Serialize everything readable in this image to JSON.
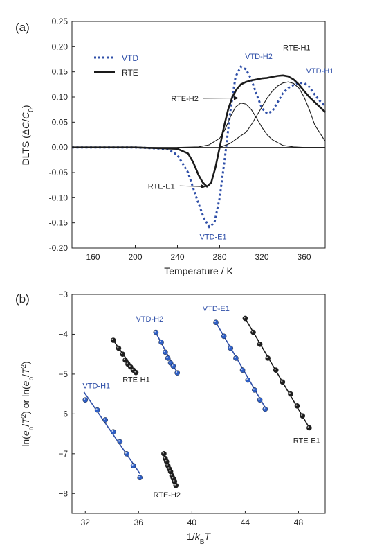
{
  "colors": {
    "vtd": "#2f4fa8",
    "rte": "#1a1a1a",
    "vtd_point": "#2f5fc6",
    "rte_point": "#1e1e1e"
  },
  "chart_data": [
    {
      "panel": "(a)",
      "type": "line",
      "xlabel": "Temperature / K",
      "ylabel": "DLTS (ΔC/C0)",
      "xlim": [
        140,
        380
      ],
      "ylim": [
        -0.2,
        0.25
      ],
      "xticks": [
        160,
        200,
        240,
        280,
        320,
        360
      ],
      "yticks": [
        0.25,
        0.2,
        0.15,
        0.1,
        0.05,
        0.0,
        -0.05,
        -0.1,
        -0.15,
        -0.2
      ],
      "ytick_labels": [
        "0.25",
        "0.20",
        "0.15",
        "0.10",
        "0.05",
        "0.00",
        "-0.05",
        "-0.10",
        "-0.15",
        "-0.20"
      ],
      "legend": {
        "position": "top-left",
        "entries": [
          {
            "label": "VTD",
            "style": "dotted"
          },
          {
            "label": "RTE",
            "style": "solid"
          }
        ]
      },
      "series": [
        {
          "name": "VTD",
          "style": "dotted",
          "x": [
            140,
            200,
            230,
            240,
            250,
            258,
            265,
            270,
            275,
            280,
            285,
            290,
            295,
            300,
            305,
            310,
            315,
            320,
            325,
            330,
            335,
            340,
            345,
            350,
            355,
            360,
            365,
            370,
            375,
            380
          ],
          "y": [
            0.0,
            0.0,
            -0.003,
            -0.015,
            -0.05,
            -0.1,
            -0.14,
            -0.158,
            -0.15,
            -0.1,
            -0.02,
            0.07,
            0.14,
            0.16,
            0.155,
            0.135,
            0.105,
            0.078,
            0.067,
            0.072,
            0.09,
            0.108,
            0.118,
            0.124,
            0.128,
            0.128,
            0.12,
            0.105,
            0.092,
            0.082
          ]
        },
        {
          "name": "RTE",
          "style": "solid",
          "x": [
            140,
            200,
            240,
            250,
            255,
            260,
            264,
            268,
            272,
            276,
            280,
            284,
            288,
            292,
            296,
            300,
            305,
            310,
            315,
            320,
            325,
            330,
            335,
            340,
            345,
            350,
            355,
            360,
            365,
            370,
            375,
            380
          ],
          "y": [
            0.0,
            0.0,
            -0.003,
            -0.012,
            -0.03,
            -0.055,
            -0.07,
            -0.078,
            -0.07,
            -0.04,
            0.0,
            0.04,
            0.075,
            0.1,
            0.115,
            0.125,
            0.13,
            0.133,
            0.135,
            0.137,
            0.138,
            0.14,
            0.142,
            0.143,
            0.141,
            0.135,
            0.125,
            0.112,
            0.1,
            0.09,
            0.08,
            0.07
          ]
        },
        {
          "name": "RTE-H2 component",
          "style": "thin",
          "x": [
            240,
            260,
            270,
            280,
            285,
            290,
            295,
            300,
            305,
            310,
            315,
            320,
            325,
            330,
            340,
            350,
            360,
            380
          ],
          "y": [
            0.0,
            0.001,
            0.005,
            0.018,
            0.035,
            0.06,
            0.08,
            0.088,
            0.086,
            0.075,
            0.058,
            0.04,
            0.025,
            0.015,
            0.004,
            0.001,
            0.0,
            0.0
          ]
        },
        {
          "name": "RTE-H1 component",
          "style": "thin",
          "x": [
            280,
            290,
            300,
            305,
            310,
            320,
            325,
            330,
            335,
            340,
            345,
            350,
            355,
            360,
            365,
            370,
            380
          ],
          "y": [
            0.0,
            0.008,
            0.023,
            0.03,
            0.045,
            0.08,
            0.098,
            0.112,
            0.122,
            0.128,
            0.13,
            0.127,
            0.118,
            0.1,
            0.075,
            0.045,
            0.012
          ]
        }
      ],
      "annotations": [
        {
          "text": "VTD-H2",
          "color": "vtd",
          "x": 304,
          "y": 0.176
        },
        {
          "text": "RTE-H1",
          "color": "rte",
          "x": 340,
          "y": 0.193
        },
        {
          "text": "VTD-H1",
          "color": "vtd",
          "x": 362,
          "y": 0.147
        },
        {
          "text": "RTE-H2",
          "color": "rte",
          "x": 234,
          "y": 0.092,
          "arrow_to": [
            298,
            0.098
          ]
        },
        {
          "text": "RTE-E1",
          "color": "rte",
          "x": 212,
          "y": -0.082,
          "arrow_to": [
            267,
            -0.078
          ]
        },
        {
          "text": "VTD-E1",
          "color": "vtd",
          "x": 261,
          "y": -0.183
        }
      ]
    },
    {
      "panel": "(b)",
      "type": "scatter",
      "xlabel": "1/kBT",
      "ylabel": "ln(en/T²) or ln(ep/T²)",
      "xlim": [
        31,
        50
      ],
      "ylim": [
        -8.5,
        -3
      ],
      "xticks": [
        32,
        36,
        40,
        44,
        48
      ],
      "yticks": [
        -3,
        -4,
        -5,
        -6,
        -7,
        -8
      ],
      "series": [
        {
          "name": "VTD-H1",
          "color": "vtd",
          "x": [
            32.0,
            32.9,
            33.5,
            34.1,
            34.6,
            35.1,
            35.6,
            36.1
          ],
          "y": [
            -5.65,
            -5.9,
            -6.15,
            -6.45,
            -6.7,
            -7.0,
            -7.3,
            -7.6
          ],
          "line": [
            [
              31.9,
              -5.45
            ],
            [
              36.1,
              -7.5
            ]
          ]
        },
        {
          "name": "RTE-H1",
          "color": "rte",
          "x": [
            34.1,
            34.5,
            34.8,
            35.0,
            35.2,
            35.4,
            35.6,
            35.8
          ],
          "y": [
            -4.15,
            -4.35,
            -4.5,
            -4.65,
            -4.75,
            -4.82,
            -4.9,
            -4.96
          ],
          "line": [
            [
              34.1,
              -4.15
            ],
            [
              35.8,
              -4.96
            ]
          ]
        },
        {
          "name": "VTD-H2",
          "color": "vtd",
          "x": [
            37.3,
            37.7,
            38.0,
            38.2,
            38.4,
            38.6,
            38.9
          ],
          "y": [
            -3.95,
            -4.2,
            -4.45,
            -4.6,
            -4.72,
            -4.8,
            -4.97
          ],
          "line": [
            [
              37.2,
              -3.9
            ],
            [
              38.9,
              -4.97
            ]
          ]
        },
        {
          "name": "VTD-E1",
          "color": "vtd",
          "x": [
            41.8,
            42.4,
            42.9,
            43.3,
            43.8,
            44.2,
            44.7,
            45.1,
            45.5
          ],
          "y": [
            -3.7,
            -4.05,
            -4.35,
            -4.6,
            -4.9,
            -5.15,
            -5.4,
            -5.65,
            -5.88
          ],
          "line": [
            [
              41.8,
              -3.7
            ],
            [
              45.6,
              -5.9
            ]
          ]
        },
        {
          "name": "RTE-E1",
          "color": "rte",
          "x": [
            44.0,
            44.6,
            45.1,
            45.7,
            46.3,
            46.8,
            47.4,
            47.9,
            48.3,
            48.8
          ],
          "y": [
            -3.6,
            -3.95,
            -4.25,
            -4.6,
            -4.9,
            -5.2,
            -5.5,
            -5.8,
            -6.05,
            -6.35
          ],
          "line": [
            [
              44.0,
              -3.6
            ],
            [
              48.9,
              -6.4
            ]
          ]
        },
        {
          "name": "RTE-H2",
          "color": "rte",
          "x": [
            37.9,
            38.0,
            38.1,
            38.2,
            38.3,
            38.4,
            38.5,
            38.6,
            38.7,
            38.8
          ],
          "y": [
            -7.0,
            -7.12,
            -7.2,
            -7.3,
            -7.38,
            -7.45,
            -7.55,
            -7.62,
            -7.7,
            -7.8
          ],
          "line": [
            [
              37.9,
              -7.0
            ],
            [
              38.8,
              -7.8
            ]
          ]
        }
      ],
      "annotations": [
        {
          "text": "VTD-H1",
          "color": "vtd",
          "x": 31.8,
          "y": -5.36
        },
        {
          "text": "RTE-H1",
          "color": "rte",
          "x": 34.8,
          "y": -5.2
        },
        {
          "text": "VTD-H2",
          "color": "vtd",
          "x": 35.8,
          "y": -3.68
        },
        {
          "text": "VTD-E1",
          "color": "vtd",
          "x": 40.8,
          "y": -3.42
        },
        {
          "text": "RTE-E1",
          "color": "rte",
          "x": 47.6,
          "y": -6.73
        },
        {
          "text": "RTE-H2",
          "color": "rte",
          "x": 37.1,
          "y": -8.1
        }
      ]
    }
  ]
}
